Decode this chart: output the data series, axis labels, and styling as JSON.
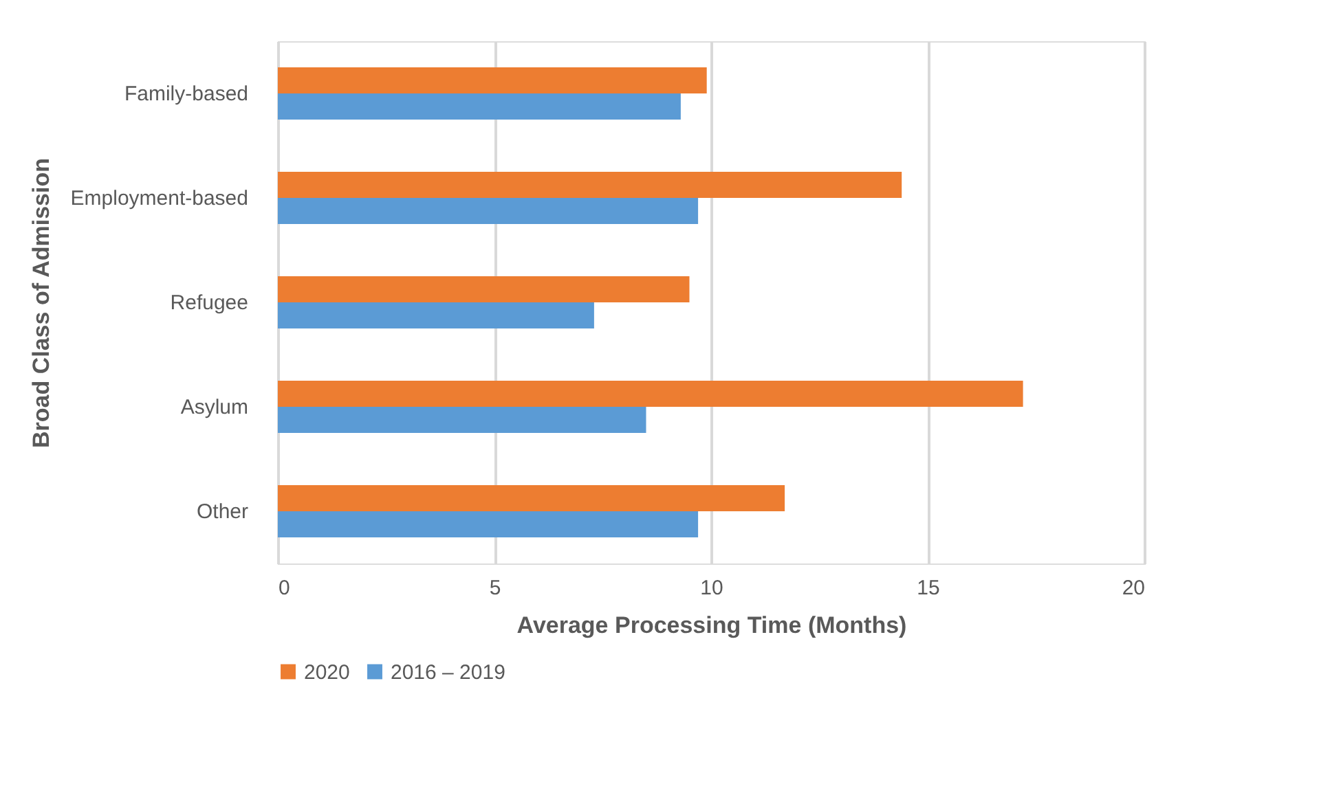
{
  "chart_data": {
    "type": "bar",
    "orientation": "horizontal",
    "xlabel": "Average Processing Time (Months)",
    "ylabel": "Broad Class of Admission",
    "categories": [
      "Family-based",
      "Employment-based",
      "Refugee",
      "Asylum",
      "Other"
    ],
    "series": [
      {
        "name": "2020",
        "color": "#ed7d31",
        "values": [
          9.9,
          14.4,
          9.5,
          17.2,
          11.7
        ]
      },
      {
        "name": "2016 – 2019",
        "color": "#5b9bd5",
        "values": [
          9.3,
          9.7,
          7.3,
          8.5,
          9.7
        ]
      }
    ],
    "xlim": [
      0,
      20
    ],
    "xticks": [
      0,
      5,
      10,
      15,
      20
    ],
    "grid": "x",
    "legend": "bottom"
  }
}
